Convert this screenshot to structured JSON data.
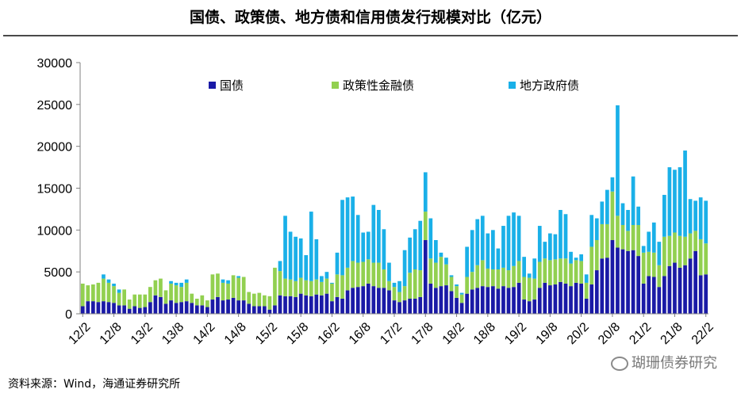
{
  "page": {
    "title": "国债、政策债、地方债和信用债发行规模对比（亿元）",
    "source": "资料来源：Wind，海通证券研究所",
    "watermark": "瑚珊债券研究"
  },
  "colors": {
    "guozhai": "#1a1aa6",
    "zhengce": "#92d050",
    "difang": "#1ab0e8",
    "axis": "#808080"
  },
  "chart_data": {
    "type": "bar",
    "stacked": true,
    "title": "国债、政策债、地方债和信用债发行规模对比（亿元）",
    "xlabel": "",
    "ylabel": "",
    "ylim": [
      0,
      30000
    ],
    "yticks": [
      0,
      5000,
      10000,
      15000,
      20000,
      25000,
      30000
    ],
    "ytick_labels": [
      "0",
      "5000",
      "10000",
      "15000",
      "20000",
      "25000",
      "30000"
    ],
    "xtick_labels": [
      {
        "label": "12/2",
        "index": 0
      },
      {
        "label": "12/8",
        "index": 6
      },
      {
        "label": "13/2",
        "index": 12
      },
      {
        "label": "13/8",
        "index": 18
      },
      {
        "label": "14/2",
        "index": 24
      },
      {
        "label": "14/8",
        "index": 30
      },
      {
        "label": "15/2",
        "index": 36
      },
      {
        "label": "15/8",
        "index": 42
      },
      {
        "label": "16/2",
        "index": 48
      },
      {
        "label": "16/8",
        "index": 54
      },
      {
        "label": "17/2",
        "index": 60
      },
      {
        "label": "17/8",
        "index": 66
      },
      {
        "label": "18/2",
        "index": 72
      },
      {
        "label": "18/8",
        "index": 78
      },
      {
        "label": "19/2",
        "index": 84
      },
      {
        "label": "19/8",
        "index": 90
      },
      {
        "label": "20/2",
        "index": 96
      },
      {
        "label": "20/8",
        "index": 102
      },
      {
        "label": "21/2",
        "index": 108
      },
      {
        "label": "21/8",
        "index": 114
      },
      {
        "label": "22/2",
        "index": 120
      }
    ],
    "legend_position": "top",
    "series": [
      {
        "name": "国债",
        "key": "guozhai",
        "values": [
          900,
          1500,
          1500,
          1400,
          1500,
          1400,
          1300,
          1000,
          1000,
          600,
          900,
          700,
          800,
          1400,
          2200,
          2000,
          1200,
          1600,
          1300,
          1400,
          1500,
          1300,
          1000,
          1000,
          800,
          1700,
          2000,
          1600,
          1700,
          1900,
          1600,
          1600,
          1200,
          900,
          900,
          900,
          500,
          1000,
          2200,
          2100,
          2100,
          2000,
          2400,
          2200,
          2100,
          2300,
          2200,
          2400,
          1500,
          2000,
          1800,
          2800,
          3100,
          3200,
          3300,
          3600,
          3300,
          3100,
          3100,
          2800,
          1600,
          1400,
          1600,
          1800,
          1800,
          2000,
          8800,
          3600,
          3100,
          3300,
          3400,
          2700,
          1900,
          1300,
          2400,
          2900,
          3100,
          3300,
          3200,
          3300,
          3000,
          3300,
          3100,
          3200,
          3700,
          1700,
          1500,
          1700,
          3100,
          3700,
          3400,
          3500,
          3800,
          3600,
          3300,
          3700,
          3600,
          1800,
          3500,
          5200,
          6600,
          6700,
          8800,
          7900,
          7700,
          7500,
          7600,
          6900,
          3600,
          4500,
          4400,
          3200,
          4500,
          5700,
          6100,
          5500,
          5800,
          6600,
          7500,
          4600,
          4700
        ]
      },
      {
        "name": "政策性金融债",
        "key": "zhengce",
        "values": [
          2700,
          1900,
          2000,
          2300,
          2700,
          2300,
          2000,
          1500,
          1900,
          1100,
          1400,
          1600,
          1500,
          1800,
          1800,
          2200,
          1600,
          2000,
          2100,
          1800,
          2200,
          1100,
          800,
          1200,
          800,
          3000,
          2800,
          2100,
          1900,
          2700,
          2700,
          2800,
          1400,
          1500,
          1600,
          1300,
          1600,
          4500,
          2900,
          2100,
          2000,
          1900,
          1900,
          1800,
          1800,
          1800,
          1600,
          1800,
          2100,
          2700,
          2800,
          2700,
          3200,
          2900,
          2900,
          2900,
          2800,
          3000,
          2200,
          1100,
          1600,
          1200,
          1700,
          3100,
          3500,
          3200,
          3400,
          3000,
          3000,
          3500,
          2500,
          1700,
          1400,
          1000,
          2000,
          2100,
          2700,
          3100,
          2200,
          2000,
          2300,
          2200,
          2100,
          2500,
          2600,
          2700,
          2800,
          2500,
          3100,
          2900,
          3000,
          3000,
          2800,
          3000,
          2700,
          2700,
          2700,
          1900,
          4500,
          3600,
          4100,
          4000,
          5800,
          3800,
          2900,
          2400,
          3000,
          3700,
          3700,
          2900,
          2900,
          2600,
          4700,
          3600,
          3600,
          3800,
          3400,
          3000,
          2400,
          4300,
          3700
        ]
      },
      {
        "name": "地方政府债",
        "key": "difang",
        "values": [
          0,
          0,
          0,
          0,
          500,
          400,
          300,
          400,
          0,
          0,
          0,
          0,
          0,
          0,
          0,
          0,
          0,
          300,
          300,
          500,
          400,
          0,
          0,
          0,
          0,
          0,
          0,
          400,
          400,
          0,
          200,
          0,
          0,
          0,
          0,
          0,
          0,
          0,
          1200,
          7500,
          5700,
          5300,
          4700,
          3000,
          8300,
          4800,
          700,
          800,
          100,
          2600,
          9000,
          8400,
          7700,
          5700,
          3500,
          3300,
          6900,
          6300,
          4800,
          2200,
          500,
          1300,
          4300,
          4200,
          4800,
          5900,
          4700,
          4800,
          2700,
          500,
          800,
          200,
          200,
          200,
          3600,
          5000,
          5500,
          5300,
          4200,
          4700,
          2500,
          5000,
          6500,
          6400,
          5400,
          2400,
          500,
          2400,
          4300,
          2000,
          3200,
          3000,
          5800,
          5300,
          1400,
          300,
          800,
          1000,
          3800,
          2600,
          2700,
          4100,
          1700,
          13200,
          2600,
          2500,
          5800,
          2200,
          800,
          2400,
          3600,
          2800,
          5000,
          8200,
          7500,
          8200,
          10300,
          4100,
          3600,
          5000,
          5100
        ]
      }
    ]
  }
}
